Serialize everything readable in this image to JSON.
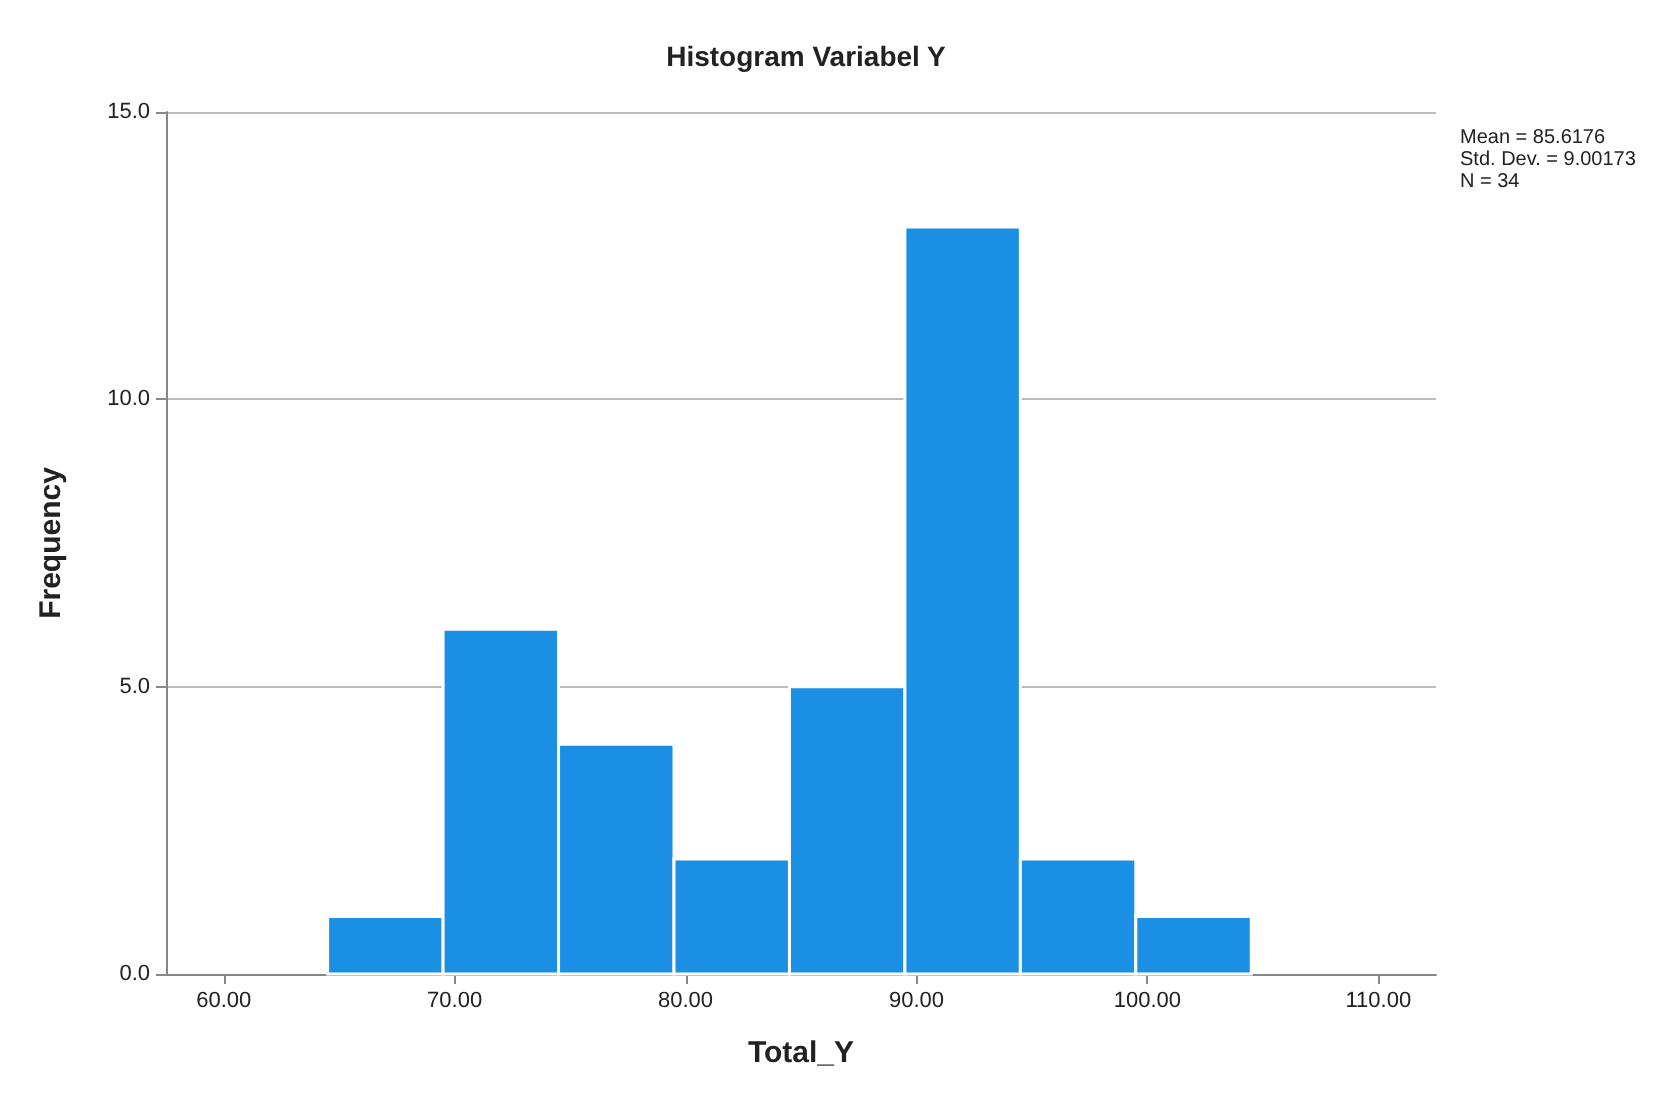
{
  "chart_data": {
    "type": "histogram",
    "title": "Histogram Variabel Y",
    "xlabel": "Total_Y",
    "ylabel": "Frequency",
    "bins": [
      64.5,
      69.5,
      74.5,
      79.5,
      84.5,
      89.5,
      94.5,
      99.5,
      104.5
    ],
    "values": [
      1,
      6,
      4,
      2,
      5,
      13,
      2,
      1
    ],
    "color": "#1a8fe3",
    "xlim": [
      57.5,
      112.5
    ],
    "xticks": [
      {
        "value": 60,
        "label": "60.00"
      },
      {
        "value": 70,
        "label": "70.00"
      },
      {
        "value": 80,
        "label": "80.00"
      },
      {
        "value": 90,
        "label": "90.00"
      },
      {
        "value": 100,
        "label": "100.00"
      },
      {
        "value": 110,
        "label": "110.00"
      }
    ],
    "ylim": [
      0,
      15
    ],
    "yticks": [
      {
        "value": 0,
        "label": "0.0"
      },
      {
        "value": 5,
        "label": "5.0"
      },
      {
        "value": 10,
        "label": "10.0"
      },
      {
        "value": 15,
        "label": "15.0"
      }
    ],
    "grid": "y",
    "annotations": [
      "Mean = 85.6176",
      "Std. Dev. = 9.00173",
      "N = 34"
    ]
  }
}
